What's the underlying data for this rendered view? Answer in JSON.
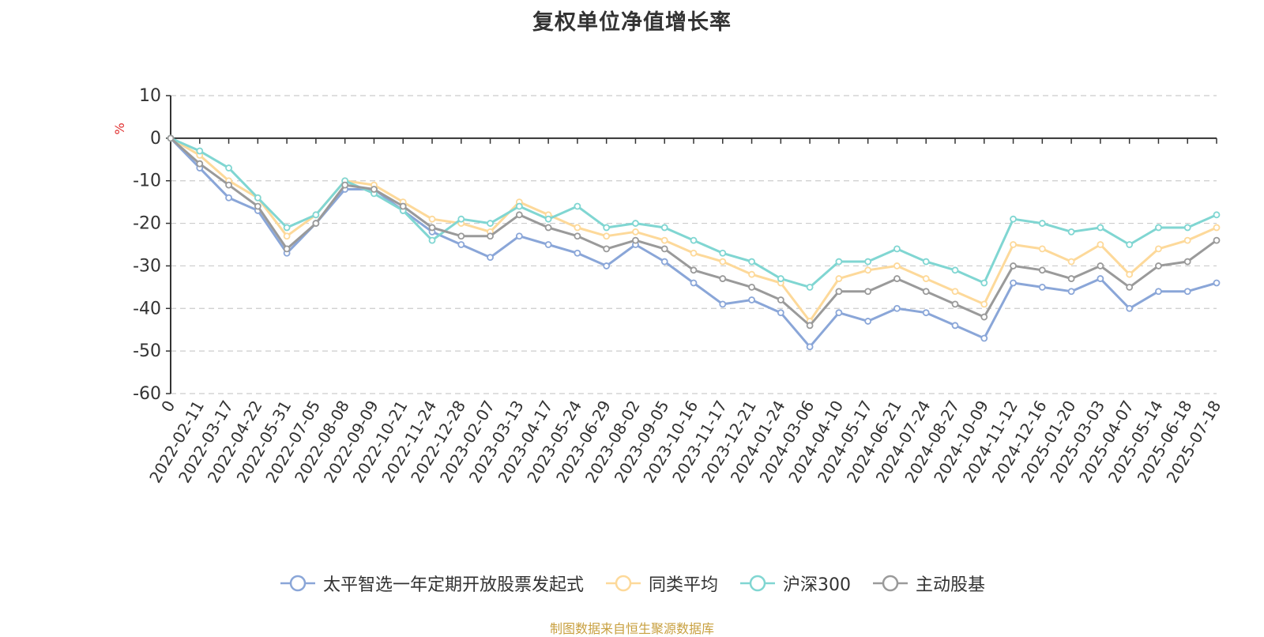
{
  "chart_data": {
    "type": "line",
    "title": "复权单位净值增长率",
    "ylabel": "%",
    "ylim": [
      -60,
      10
    ],
    "yticks": [
      "10",
      "0",
      "-10",
      "-20",
      "-30",
      "-40",
      "-50",
      "-60"
    ],
    "x_ticks": [
      "0",
      "2022-02-11",
      "2022-03-17",
      "2022-04-22",
      "2022-05-31",
      "2022-07-05",
      "2022-08-08",
      "2022-09-09",
      "2022-10-21",
      "2022-11-24",
      "2022-12-28",
      "2023-02-07",
      "2023-03-13",
      "2023-04-17",
      "2023-05-24",
      "2023-06-29",
      "2023-08-02",
      "2023-09-05",
      "2023-10-16",
      "2023-11-17",
      "2023-12-21",
      "2024-01-24",
      "2024-03-06",
      "2024-04-10",
      "2024-05-17",
      "2024-06-21",
      "2024-07-24",
      "2024-08-27",
      "2024-10-09",
      "2024-11-12",
      "2024-12-16",
      "2025-01-20",
      "2025-03-03",
      "2025-04-07",
      "2025-05-14",
      "2025-06-18",
      "2025-07-18"
    ],
    "grid": true,
    "legend_position": "bottom",
    "series": [
      {
        "name": "太平智选一年定期开放股票发起式",
        "color": "#8aa6d8",
        "values": [
          0,
          -7,
          -14,
          -17,
          -27,
          -20,
          -12,
          -12,
          -17,
          -22,
          -25,
          -28,
          -23,
          -25,
          -27,
          -30,
          -25,
          -29,
          -34,
          -39,
          -38,
          -41,
          -49,
          -41,
          -43,
          -40,
          -41,
          -44,
          -47,
          -34,
          -35,
          -36,
          -33,
          -40,
          -36,
          -36,
          -34
        ]
      },
      {
        "name": "同类平均",
        "color": "#fdd99a",
        "values": [
          0,
          -4,
          -10,
          -14,
          -23,
          -18,
          -10,
          -11,
          -15,
          -19,
          -20,
          -22,
          -15,
          -18,
          -21,
          -23,
          -22,
          -24,
          -27,
          -29,
          -32,
          -34,
          -43,
          -33,
          -31,
          -30,
          -33,
          -36,
          -39,
          -25,
          -26,
          -29,
          -25,
          -32,
          -26,
          -24,
          -21
        ]
      },
      {
        "name": "沪深300",
        "color": "#80d6d2",
        "values": [
          0,
          -3,
          -7,
          -14,
          -21,
          -18,
          -10,
          -13,
          -17,
          -24,
          -19,
          -20,
          -16,
          -19,
          -16,
          -21,
          -20,
          -21,
          -24,
          -27,
          -29,
          -33,
          -35,
          -29,
          -29,
          -26,
          -29,
          -31,
          -34,
          -19,
          -20,
          -22,
          -21,
          -25,
          -21,
          -21,
          -18
        ]
      },
      {
        "name": "主动股基",
        "color": "#9a9a9a",
        "values": [
          0,
          -6,
          -11,
          -16,
          -26,
          -20,
          -11,
          -12,
          -16,
          -21,
          -23,
          -23,
          -18,
          -21,
          -23,
          -26,
          -24,
          -26,
          -31,
          -33,
          -35,
          -38,
          -44,
          -36,
          -36,
          -33,
          -36,
          -39,
          -42,
          -30,
          -31,
          -33,
          -30,
          -35,
          -30,
          -29,
          -24
        ]
      }
    ]
  },
  "source_note": "制图数据来自恒生聚源数据库"
}
